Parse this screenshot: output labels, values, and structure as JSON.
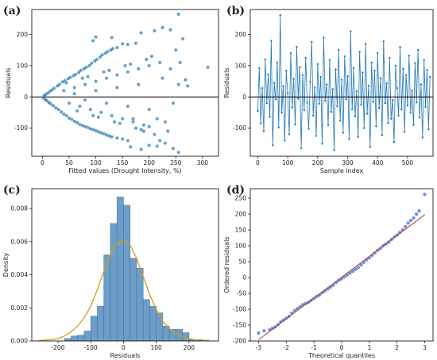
{
  "figure": {
    "background": "#ffffff"
  },
  "chart_data": [
    {
      "id": "a",
      "panel_label": "(a)",
      "type": "scatter",
      "xlabel": "Fitted values (Drought Intensity, %)",
      "ylabel": "Residuals",
      "xlim": [
        -20,
        330
      ],
      "ylim": [
        -190,
        280
      ],
      "xticks": [
        0,
        50,
        100,
        150,
        200,
        250,
        300
      ],
      "yticks": [
        -100,
        0,
        100,
        200
      ],
      "reference_line": 0,
      "point_color": "#1f77b4",
      "points": [
        [
          2,
          -3
        ],
        [
          5,
          -8
        ],
        [
          8,
          -12
        ],
        [
          12,
          -18
        ],
        [
          15,
          -22
        ],
        [
          20,
          -28
        ],
        [
          25,
          -35
        ],
        [
          30,
          -40
        ],
        [
          35,
          -48
        ],
        [
          40,
          -55
        ],
        [
          45,
          -60
        ],
        [
          50,
          -68
        ],
        [
          55,
          -72
        ],
        [
          60,
          -78
        ],
        [
          65,
          -82
        ],
        [
          70,
          -88
        ],
        [
          75,
          -92
        ],
        [
          80,
          -95
        ],
        [
          85,
          -98
        ],
        [
          90,
          -102
        ],
        [
          95,
          -105
        ],
        [
          100,
          -108
        ],
        [
          105,
          -112
        ],
        [
          110,
          -115
        ],
        [
          115,
          -118
        ],
        [
          120,
          -122
        ],
        [
          125,
          -125
        ],
        [
          130,
          -128
        ],
        [
          140,
          -132
        ],
        [
          150,
          -135
        ],
        [
          160,
          -140
        ],
        [
          165,
          -160
        ],
        [
          185,
          -168
        ],
        [
          200,
          -155
        ],
        [
          215,
          -158
        ],
        [
          230,
          -148
        ],
        [
          245,
          -165
        ],
        [
          255,
          -178
        ],
        [
          3,
          4
        ],
        [
          6,
          8
        ],
        [
          10,
          12
        ],
        [
          14,
          18
        ],
        [
          18,
          22
        ],
        [
          22,
          28
        ],
        [
          28,
          35
        ],
        [
          32,
          40
        ],
        [
          38,
          48
        ],
        [
          42,
          52
        ],
        [
          48,
          58
        ],
        [
          52,
          62
        ],
        [
          58,
          68
        ],
        [
          62,
          72
        ],
        [
          68,
          78
        ],
        [
          72,
          85
        ],
        [
          78,
          90
        ],
        [
          82,
          95
        ],
        [
          88,
          100
        ],
        [
          92,
          108
        ],
        [
          98,
          115
        ],
        [
          102,
          120
        ],
        [
          108,
          128
        ],
        [
          112,
          135
        ],
        [
          118,
          140
        ],
        [
          122,
          145
        ],
        [
          128,
          150
        ],
        [
          132,
          155
        ],
        [
          140,
          158
        ],
        [
          95,
          180
        ],
        [
          100,
          192
        ],
        [
          130,
          190
        ],
        [
          150,
          170
        ],
        [
          160,
          168
        ],
        [
          175,
          172
        ],
        [
          185,
          205
        ],
        [
          210,
          212
        ],
        [
          225,
          222
        ],
        [
          240,
          215
        ],
        [
          255,
          265
        ],
        [
          263,
          186
        ],
        [
          250,
          150
        ],
        [
          258,
          110
        ],
        [
          268,
          55
        ],
        [
          272,
          35
        ],
        [
          310,
          95
        ],
        [
          200,
          -95
        ],
        [
          190,
          -110
        ],
        [
          170,
          -70
        ],
        [
          215,
          -70
        ],
        [
          230,
          -80
        ],
        [
          40,
          20
        ],
        [
          60,
          30
        ],
        [
          80,
          40
        ],
        [
          100,
          50
        ],
        [
          120,
          60
        ],
        [
          140,
          70
        ],
        [
          160,
          80
        ],
        [
          180,
          90
        ],
        [
          200,
          100
        ],
        [
          220,
          110
        ],
        [
          50,
          -20
        ],
        [
          70,
          -30
        ],
        [
          90,
          -40
        ],
        [
          110,
          -50
        ],
        [
          130,
          -60
        ],
        [
          150,
          -70
        ],
        [
          170,
          -80
        ],
        [
          190,
          -90
        ],
        [
          60,
          10
        ],
        [
          80,
          -10
        ],
        [
          100,
          20
        ],
        [
          120,
          -20
        ],
        [
          140,
          30
        ],
        [
          160,
          -30
        ],
        [
          180,
          40
        ],
        [
          200,
          -40
        ],
        [
          75,
          60
        ],
        [
          95,
          -60
        ],
        [
          115,
          80
        ],
        [
          135,
          -80
        ],
        [
          155,
          100
        ],
        [
          175,
          -100
        ],
        [
          195,
          120
        ],
        [
          210,
          -120
        ],
        [
          45,
          45
        ],
        [
          65,
          -45
        ],
        [
          85,
          65
        ],
        [
          105,
          -65
        ],
        [
          125,
          85
        ],
        [
          145,
          -85
        ],
        [
          165,
          105
        ],
        [
          185,
          -105
        ],
        [
          205,
          130
        ],
        [
          225,
          60
        ],
        [
          240,
          90
        ],
        [
          245,
          -20
        ],
        [
          255,
          40
        ],
        [
          235,
          -110
        ],
        [
          220,
          -140
        ]
      ]
    },
    {
      "id": "b",
      "panel_label": "(b)",
      "type": "line",
      "xlabel": "Sample index",
      "ylabel": "Residuals",
      "xlim": [
        -25,
        585
      ],
      "ylim": [
        -190,
        280
      ],
      "xticks": [
        0,
        100,
        200,
        300,
        400,
        500
      ],
      "yticks": [
        -100,
        0,
        100,
        200
      ],
      "reference_line": 0,
      "line_color": "#1f77b4",
      "x_start": 0,
      "x_step": 5,
      "values": [
        -45,
        92,
        -85,
        28,
        -110,
        120,
        -20,
        72,
        -64,
        180,
        -155,
        45,
        -8,
        110,
        -98,
        262,
        -50,
        35,
        -140,
        84,
        12,
        -120,
        140,
        -34,
        58,
        -88,
        160,
        -6,
        95,
        -165,
        70,
        -42,
        125,
        -18,
        -102,
        48,
        176,
        -60,
        30,
        -125,
        105,
        -22,
        64,
        -150,
        190,
        -12,
        40,
        -90,
        118,
        -48,
        25,
        -170,
        88,
        -30,
        150,
        -76,
        55,
        -115,
        130,
        -8,
        66,
        -135,
        210,
        -40,
        92,
        -62,
        18,
        -128,
        145,
        -24,
        78,
        -100,
        170,
        -54,
        36,
        -160,
        110,
        -16,
        84,
        -94,
        140,
        -36,
        60,
        -122,
        178,
        -20,
        44,
        -84,
        125,
        -70,
        -10,
        -145,
        100,
        28,
        -60,
        160,
        -40,
        90,
        -112,
        70,
        -28,
        132,
        -50,
        20,
        -90,
        108,
        -18,
        150,
        -66,
        40,
        -130,
        118,
        -32,
        86,
        -104,
        64
      ]
    },
    {
      "id": "c",
      "panel_label": "(c)",
      "type": "bar",
      "subtype": "histogram_with_kde",
      "xlabel": "Residuals",
      "ylabel": "Density",
      "xlim": [
        -280,
        290
      ],
      "ylim": [
        0,
        0.0092
      ],
      "xticks": [
        -200,
        -100,
        0,
        100,
        200
      ],
      "yticks": [
        0.0,
        0.002,
        0.004,
        0.006,
        0.008
      ],
      "ytick_labels": [
        "0.000",
        "0.002",
        "0.004",
        "0.006",
        "0.008"
      ],
      "bar_color": "#6d9ec9",
      "kde_color": "#d19c1f",
      "bin_width": 20,
      "bins": [
        {
          "left": -180,
          "value": 0.00015
        },
        {
          "left": -160,
          "value": 0.0003
        },
        {
          "left": -140,
          "value": 0.00035
        },
        {
          "left": -120,
          "value": 0.0006
        },
        {
          "left": -100,
          "value": 0.0015
        },
        {
          "left": -80,
          "value": 0.0021
        },
        {
          "left": -60,
          "value": 0.0052
        },
        {
          "left": -40,
          "value": 0.0071
        },
        {
          "left": -20,
          "value": 0.0087
        },
        {
          "left": 0,
          "value": 0.0082
        },
        {
          "left": 20,
          "value": 0.005
        },
        {
          "left": 40,
          "value": 0.0044
        },
        {
          "left": 60,
          "value": 0.0025
        },
        {
          "left": 80,
          "value": 0.0021
        },
        {
          "left": 100,
          "value": 0.0017
        },
        {
          "left": 120,
          "value": 0.0009
        },
        {
          "left": 140,
          "value": 0.0007
        },
        {
          "left": 160,
          "value": 0.0007
        },
        {
          "left": 180,
          "value": 0.0005
        },
        {
          "left": 200,
          "value": 8e-05
        },
        {
          "left": 220,
          "value": 8e-05
        },
        {
          "left": 240,
          "value": 5e-05
        }
      ],
      "kde": {
        "x": [
          -260,
          -220,
          -200,
          -180,
          -160,
          -140,
          -120,
          -100,
          -80,
          -60,
          -40,
          -20,
          0,
          20,
          40,
          60,
          80,
          100,
          120,
          140,
          160,
          180,
          200,
          220,
          240,
          260
        ],
        "y": [
          2e-05,
          8e-05,
          0.00015,
          0.0003,
          0.00055,
          0.0009,
          0.0014,
          0.0021,
          0.0031,
          0.0042,
          0.0052,
          0.0059,
          0.0061,
          0.0058,
          0.005,
          0.0039,
          0.0028,
          0.0019,
          0.0012,
          0.00075,
          0.00045,
          0.00025,
          0.00013,
          7e-05,
          3e-05,
          1e-05
        ]
      }
    },
    {
      "id": "d",
      "panel_label": "(d)",
      "type": "scatter",
      "subtype": "qq_plot",
      "xlabel": "Theoretical quantiles",
      "ylabel": "Ordered residuals",
      "xlim": [
        -3.3,
        3.3
      ],
      "ylim": [
        -200,
        280
      ],
      "xticks": [
        -3,
        -2,
        -1,
        0,
        1,
        2,
        3
      ],
      "yticks": [
        -200,
        -150,
        -100,
        -50,
        0,
        50,
        100,
        150,
        200,
        250
      ],
      "point_color": "#4a6fd8",
      "line_color": "#c0392b",
      "reference_line_points": [
        [
          -3.0,
          -196
        ],
        [
          3.0,
          198
        ]
      ],
      "points": [
        [
          -3.0,
          -175
        ],
        [
          -2.8,
          -168
        ],
        [
          -2.6,
          -165
        ],
        [
          -2.5,
          -160
        ],
        [
          -2.4,
          -156
        ],
        [
          -2.3,
          -148
        ],
        [
          -2.2,
          -140
        ],
        [
          -2.1,
          -134
        ],
        [
          -2.0,
          -128
        ],
        [
          -1.9,
          -122
        ],
        [
          -1.8,
          -112
        ],
        [
          -1.7,
          -104
        ],
        [
          -1.6,
          -98
        ],
        [
          -1.5,
          -92
        ],
        [
          -1.4,
          -86
        ],
        [
          -1.3,
          -82
        ],
        [
          -1.2,
          -78
        ],
        [
          -1.1,
          -72
        ],
        [
          -1.0,
          -66
        ],
        [
          -0.9,
          -60
        ],
        [
          -0.8,
          -55
        ],
        [
          -0.7,
          -48
        ],
        [
          -0.6,
          -42
        ],
        [
          -0.5,
          -36
        ],
        [
          -0.4,
          -30
        ],
        [
          -0.3,
          -24
        ],
        [
          -0.2,
          -16
        ],
        [
          -0.1,
          -9
        ],
        [
          0.0,
          -4
        ],
        [
          0.1,
          2
        ],
        [
          0.2,
          8
        ],
        [
          0.3,
          14
        ],
        [
          0.4,
          20
        ],
        [
          0.5,
          26
        ],
        [
          0.6,
          32
        ],
        [
          0.7,
          40
        ],
        [
          0.8,
          48
        ],
        [
          0.9,
          56
        ],
        [
          1.0,
          62
        ],
        [
          1.1,
          70
        ],
        [
          1.2,
          78
        ],
        [
          1.3,
          86
        ],
        [
          1.4,
          92
        ],
        [
          1.5,
          100
        ],
        [
          1.6,
          106
        ],
        [
          1.7,
          112
        ],
        [
          1.8,
          120
        ],
        [
          1.9,
          128
        ],
        [
          2.0,
          134
        ],
        [
          2.1,
          142
        ],
        [
          2.2,
          150
        ],
        [
          2.3,
          160
        ],
        [
          2.4,
          172
        ],
        [
          2.5,
          180
        ],
        [
          2.6,
          188
        ],
        [
          2.7,
          200
        ],
        [
          2.8,
          210
        ],
        [
          3.0,
          262
        ]
      ]
    }
  ]
}
